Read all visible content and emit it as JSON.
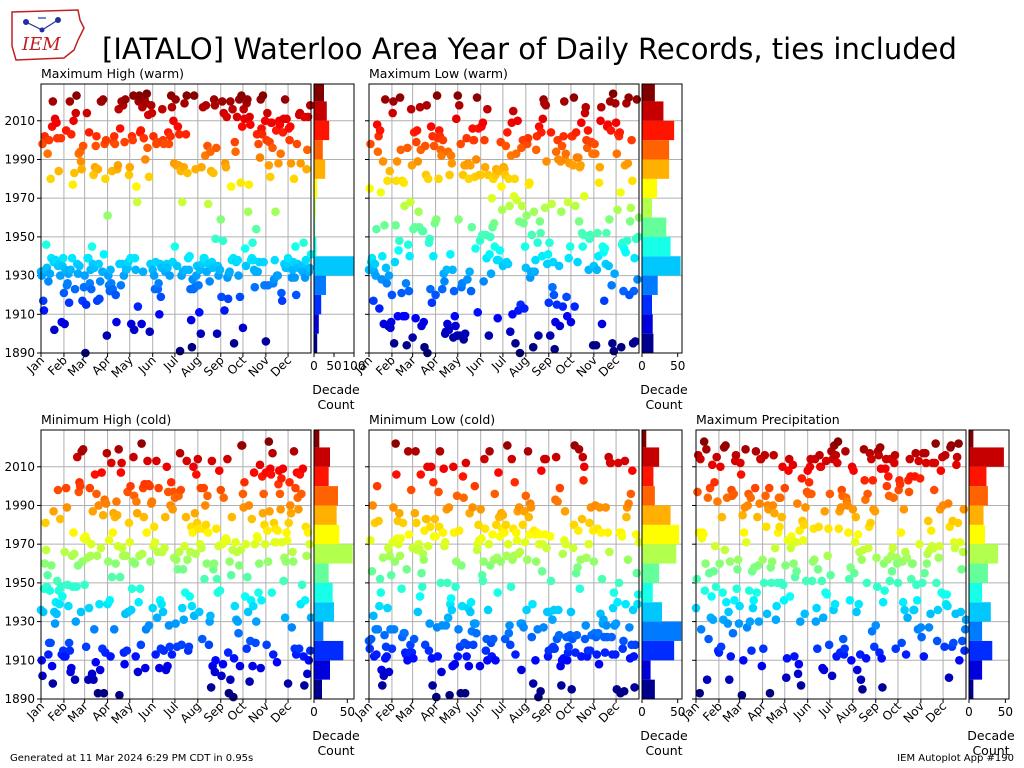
{
  "header": {
    "title": "[IATALO] Waterloo Area Year of Daily Records, ties included",
    "logo_text": "IEM"
  },
  "footer": {
    "generated": "Generated at 11 Mar 2024 6:29 PM CDT in 0.95s",
    "app": "IEM Autoplot App #190"
  },
  "colors": {
    "grid": "#b0b0b0",
    "colormap": "jet"
  },
  "chart_data": [
    {
      "type": "scatter",
      "title": "Maximum High (warm)",
      "x_ticks": [
        "Jan",
        "Feb",
        "Mar",
        "Apr",
        "May",
        "Jun",
        "Jul",
        "Aug",
        "Sep",
        "Oct",
        "Nov",
        "Dec"
      ],
      "y_ticks": [
        1890,
        1910,
        1930,
        1950,
        1970,
        1990,
        2010
      ],
      "ylim": [
        1890,
        2029
      ],
      "xlim": [
        1,
        366
      ],
      "grid": true,
      "seed": 11,
      "hist": {
        "label": "Decade Count",
        "xticks": [
          0,
          50,
          100
        ],
        "xlim": [
          0,
          100
        ],
        "decades": [
          1890,
          1900,
          1910,
          1920,
          1930,
          1940,
          1950,
          1960,
          1970,
          1980,
          1990,
          2000,
          2010,
          2020
        ],
        "counts": [
          8,
          12,
          18,
          30,
          100,
          6,
          3,
          4,
          8,
          28,
          22,
          38,
          32,
          25
        ]
      }
    },
    {
      "type": "scatter",
      "title": "Maximum Low (warm)",
      "x_ticks": [
        "Jan",
        "Feb",
        "Mar",
        "Apr",
        "May",
        "Jun",
        "Jul",
        "Aug",
        "Sep",
        "Oct",
        "Nov",
        "Dec"
      ],
      "y_ticks": [
        1890,
        1910,
        1930,
        1950,
        1970,
        1990,
        2010
      ],
      "ylim": [
        1890,
        2029
      ],
      "xlim": [
        1,
        366
      ],
      "grid": true,
      "seed": 23,
      "hist": {
        "label": "Decade Count",
        "xticks": [
          0,
          50
        ],
        "xlim": [
          0,
          56
        ],
        "decades": [
          1890,
          1900,
          1910,
          1920,
          1930,
          1940,
          1950,
          1960,
          1970,
          1980,
          1990,
          2000,
          2010,
          2020
        ],
        "counts": [
          16,
          15,
          14,
          22,
          54,
          40,
          34,
          14,
          21,
          38,
          38,
          45,
          30,
          18
        ]
      }
    },
    {
      "type": "scatter",
      "title": "Minimum High (cold)",
      "x_ticks": [
        "Jan",
        "Feb",
        "Mar",
        "Apr",
        "May",
        "Jun",
        "Jul",
        "Aug",
        "Sep",
        "Oct",
        "Nov",
        "Dec"
      ],
      "y_ticks": [
        1890,
        1910,
        1930,
        1950,
        1970,
        1990,
        2010
      ],
      "ylim": [
        1890,
        2029
      ],
      "xlim": [
        1,
        366
      ],
      "grid": true,
      "seed": 37,
      "hist": {
        "label": "Decade Count",
        "xticks": [
          0,
          50
        ],
        "xlim": [
          0,
          60
        ],
        "decades": [
          1890,
          1900,
          1910,
          1920,
          1930,
          1940,
          1950,
          1960,
          1970,
          1980,
          1990,
          2000,
          2010,
          2020
        ],
        "counts": [
          12,
          24,
          44,
          14,
          30,
          28,
          22,
          58,
          38,
          34,
          36,
          22,
          24,
          8
        ]
      }
    },
    {
      "type": "scatter",
      "title": "Minimum Low (cold)",
      "x_ticks": [
        "Jan",
        "Feb",
        "Mar",
        "Apr",
        "May",
        "Jun",
        "Jul",
        "Aug",
        "Sep",
        "Oct",
        "Nov",
        "Dec"
      ],
      "y_ticks": [
        1890,
        1910,
        1930,
        1950,
        1970,
        1990,
        2010
      ],
      "ylim": [
        1890,
        2029
      ],
      "xlim": [
        1,
        366
      ],
      "grid": true,
      "seed": 53,
      "hist": {
        "label": "Decade Count",
        "xticks": [
          0,
          50
        ],
        "xlim": [
          0,
          56
        ],
        "decades": [
          1890,
          1900,
          1910,
          1920,
          1930,
          1940,
          1950,
          1960,
          1970,
          1980,
          1990,
          2000,
          2010,
          2020
        ],
        "counts": [
          18,
          12,
          45,
          55,
          28,
          15,
          24,
          48,
          52,
          40,
          18,
          16,
          24,
          6
        ]
      }
    },
    {
      "type": "scatter",
      "title": "Maximum Precipitation",
      "x_ticks": [
        "Jan",
        "Feb",
        "Mar",
        "Apr",
        "May",
        "Jun",
        "Jul",
        "Aug",
        "Sep",
        "Oct",
        "Nov",
        "Dec"
      ],
      "y_ticks": [
        1890,
        1910,
        1930,
        1950,
        1970,
        1990,
        2010
      ],
      "ylim": [
        1890,
        2029
      ],
      "xlim": [
        1,
        366
      ],
      "grid": true,
      "seed": 71,
      "hist": {
        "label": "Decade Count",
        "xticks": [
          0,
          50
        ],
        "xlim": [
          0,
          55
        ],
        "decades": [
          1890,
          1900,
          1910,
          1920,
          1930,
          1940,
          1950,
          1960,
          1970,
          1980,
          1990,
          2000,
          2010,
          2020
        ],
        "counts": [
          6,
          18,
          32,
          18,
          30,
          18,
          26,
          40,
          22,
          20,
          26,
          24,
          48,
          6
        ]
      }
    }
  ]
}
